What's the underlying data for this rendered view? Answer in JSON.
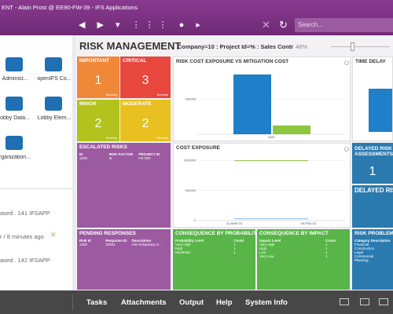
{
  "window": {
    "title": "ENT - Alain Prost @ EE90-FW-39 - IFS Applications",
    "search": "Search..."
  },
  "navigator": {
    "items": [
      "Administ...",
      "openIFS Co...",
      "obby Data...",
      "Lobby Elem...",
      "rganization..."
    ]
  },
  "notifications": [
    "ased . 141 IFSAPP",
    "r / 8 minutes ago",
    "ased . 142 IFSAPP"
  ],
  "lobby": {
    "title": "RISK MANAGEMENT",
    "context": "Company=10 : Project Id=% : Sales Contr",
    "zoom": "46%"
  },
  "tiles": [
    {
      "title": "IMPORTANT",
      "value": 1,
      "caption": "Severity",
      "color": "#f0883a"
    },
    {
      "title": "CRITICAL",
      "value": 3,
      "caption": "Severity",
      "color": "#e8473d"
    },
    {
      "title": "MINOR",
      "value": 2,
      "caption": "Severity",
      "color": "#b3c21c"
    },
    {
      "title": "MODERATE",
      "value": 2,
      "caption": "Severity",
      "color": "#e8c020"
    }
  ],
  "cost_vs_mitigation": {
    "title": "RISK COST EXPOSURE VS MITIGATION COST",
    "categories": [
      "1000"
    ],
    "series": [
      {
        "color": "#1f7fc8",
        "values": [
          340000
        ]
      },
      {
        "color": "#8dc63f",
        "values": [
          50000
        ]
      }
    ],
    "ylim": [
      0,
      375000
    ],
    "yticks": [
      200000
    ]
  },
  "time_delay": {
    "title": "TIME DELAY"
  },
  "cost_exposure": {
    "title": "COST EXPOSURE",
    "categories": [
      "31-MAR-15",
      "28-FEB-15"
    ],
    "series": [
      {
        "color": "#8dc63f",
        "values": [
          1000000,
          1000000
        ]
      },
      {
        "color": "#7fb8e8",
        "values": [
          30000,
          30000
        ]
      }
    ],
    "ylim": [
      0,
      1100000
    ],
    "yticks": [
      0,
      500000,
      1000000
    ]
  },
  "escalated": {
    "title": "ESCALATED RISKS",
    "columns": [
      "ID",
      "RISK FACTOR",
      "PROJECT ID"
    ],
    "rows": [
      [
        "1200",
        "★",
        "HK-002"
      ]
    ]
  },
  "delayed": {
    "title": "DELAYED RISK ASSESSMENTS",
    "value": 1
  },
  "delayed2": {
    "title": "DELAYED RISK A"
  },
  "pending": {
    "title": "PENDING RESPONSES",
    "columns": [
      "Risk Id",
      "Response ID",
      "Description"
    ],
    "rows": [
      [
        "1200",
        "10001",
        "Hire temporary m..."
      ]
    ]
  },
  "by_probability": {
    "title": "CONSEQUENCE BY PROBABILITY",
    "columns": [
      "Probability Level",
      "Count"
    ],
    "rows": [
      [
        "Very High",
        "1"
      ],
      [
        "High",
        "1"
      ],
      [
        "Moderate",
        "1"
      ]
    ]
  },
  "by_impact": {
    "title": "CONSEQUENCE BY IMPACT",
    "columns": [
      "Impact Level",
      "Count"
    ],
    "rows": [
      [
        "Very High",
        "1"
      ],
      [
        "High",
        "1"
      ],
      [
        "Low",
        "1"
      ],
      [
        "Very Low",
        "1"
      ]
    ]
  },
  "problems": {
    "title": "RISK PROBLEM",
    "columns": [
      "Category Description"
    ],
    "rows": [
      [
        "Financial"
      ],
      [
        "Construction"
      ],
      [
        "Legal"
      ],
      [
        "Commercial"
      ],
      [
        "Planning"
      ]
    ]
  },
  "footer": {
    "items": [
      "Tasks",
      "Attachments",
      "Output",
      "Help",
      "System Info"
    ]
  }
}
